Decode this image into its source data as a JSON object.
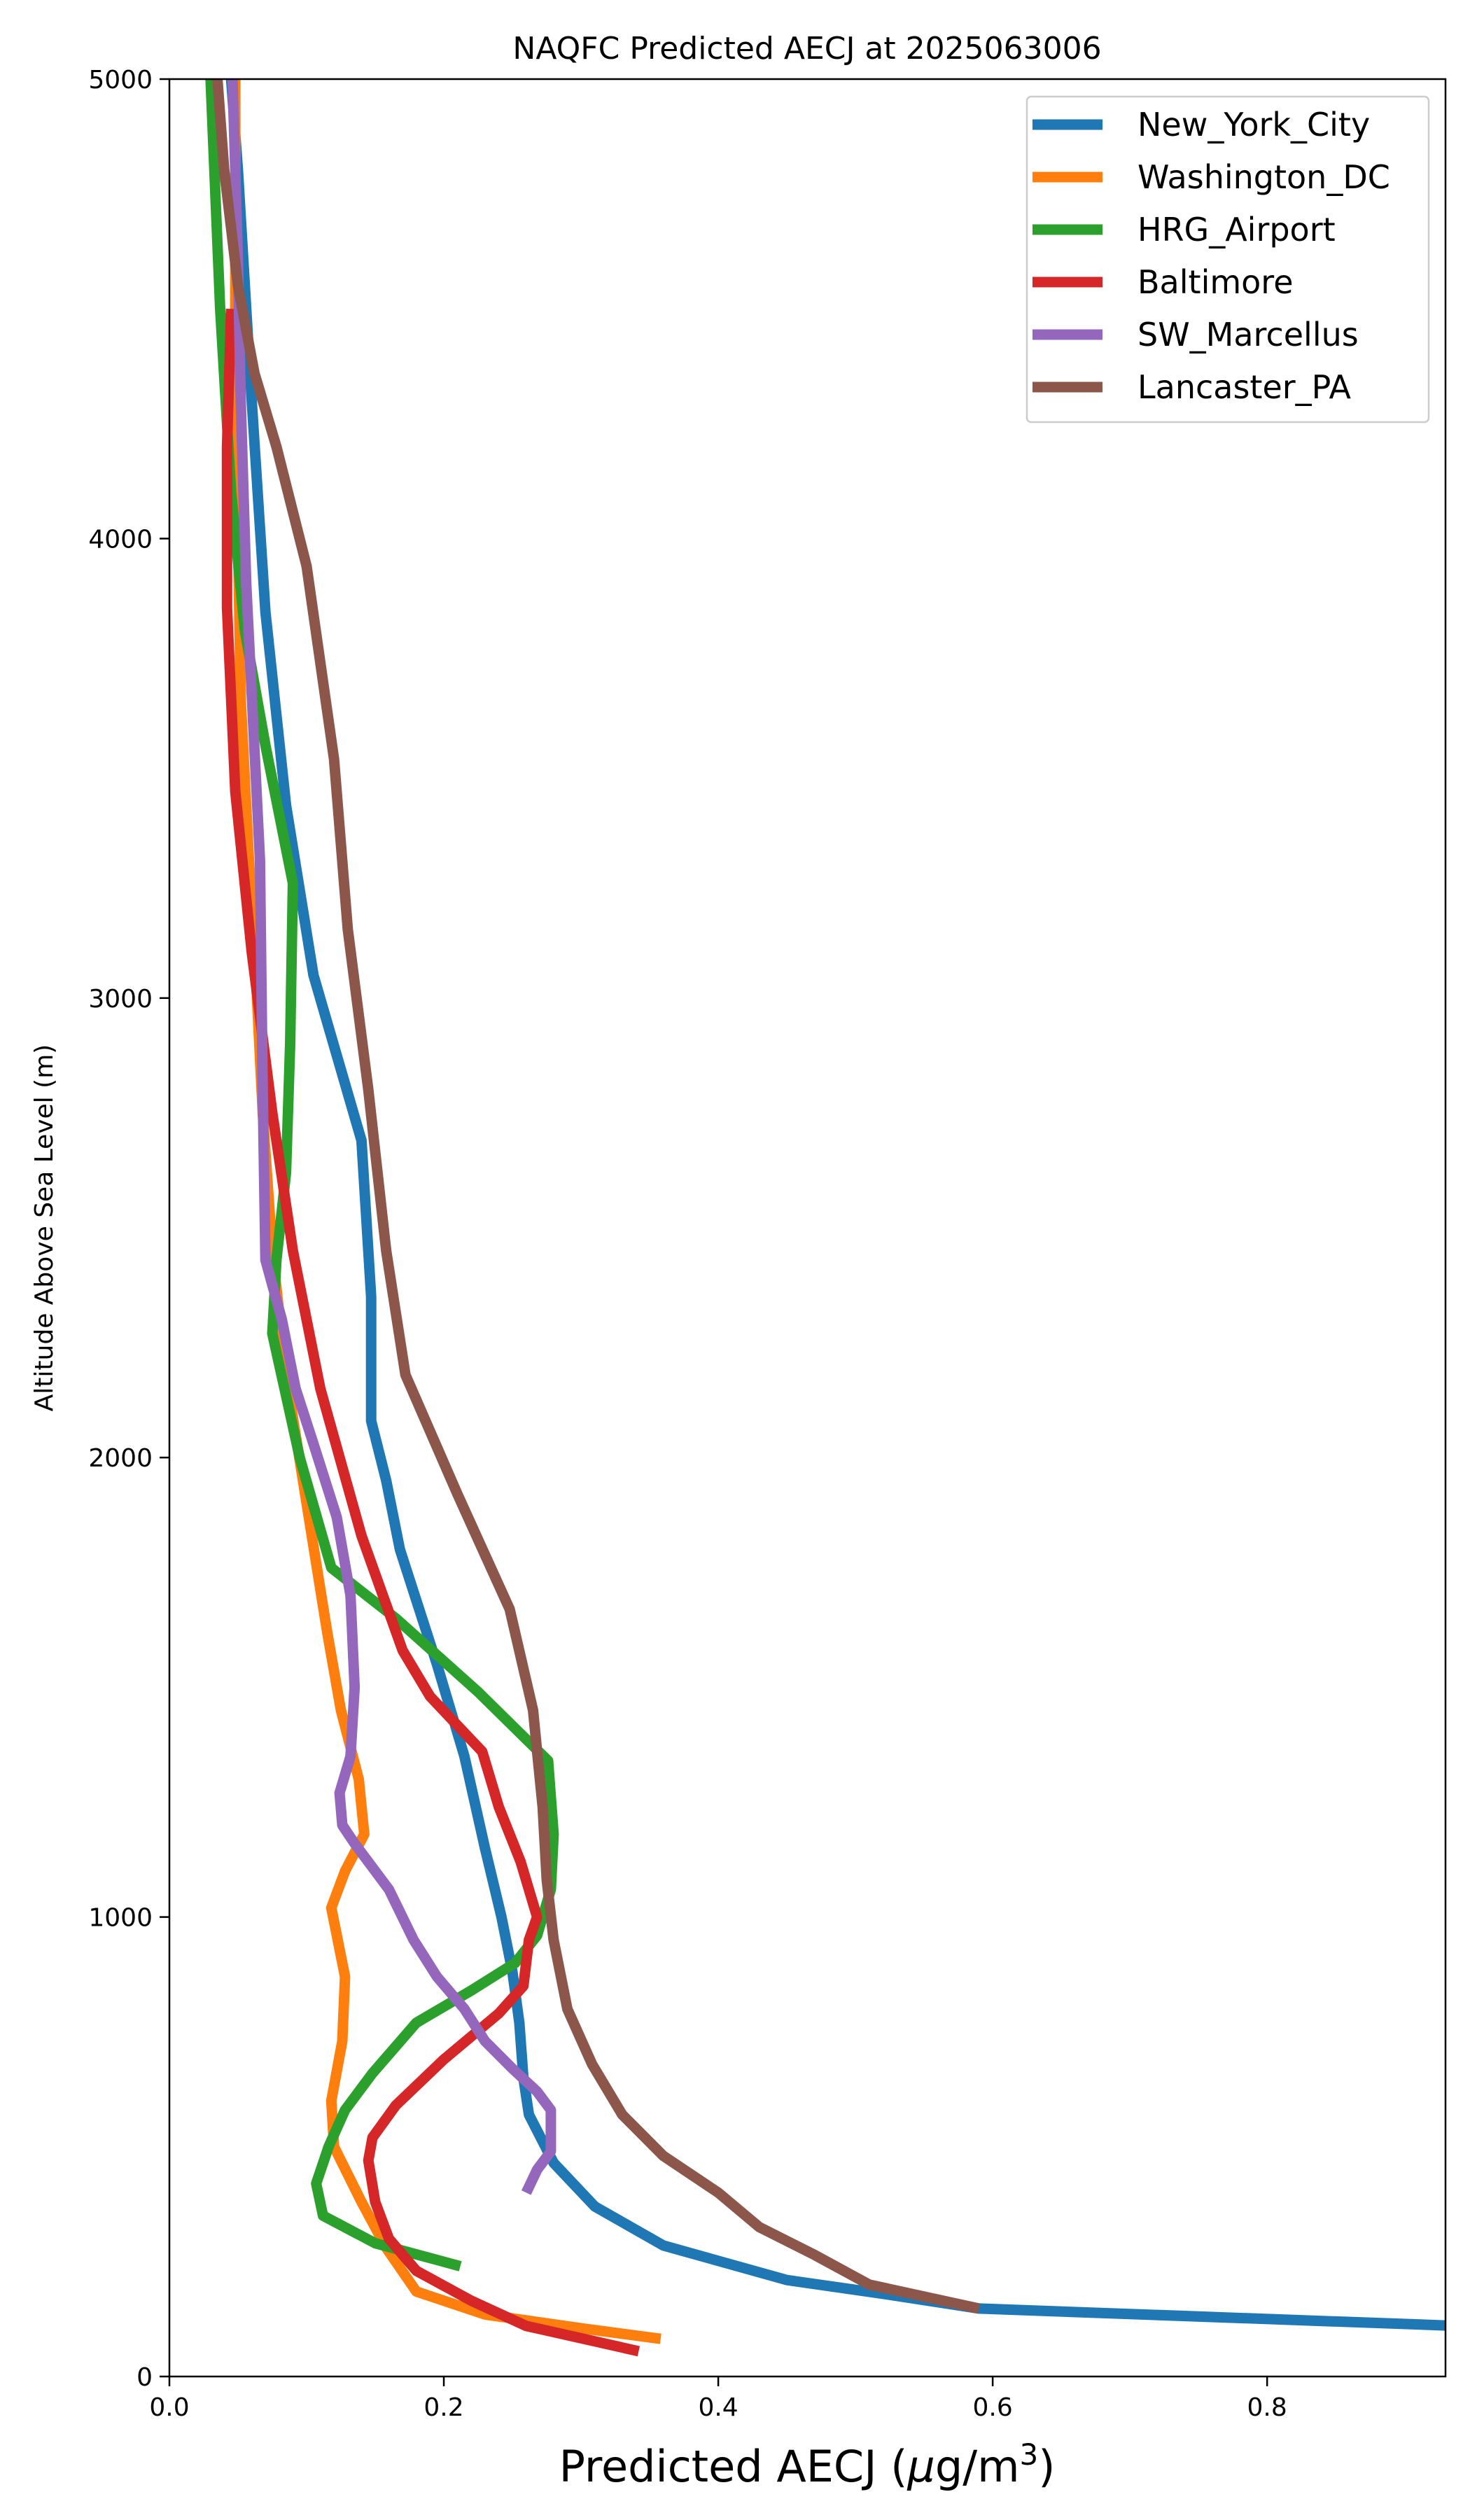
{
  "chart_data": {
    "type": "line",
    "title": "NAQFC Predicted AECJ at 2025063006",
    "xlabel": "Predicted AECJ (μg/m³)",
    "xlabel_main": "Predicted AECJ (",
    "xlabel_mu": "μ",
    "xlabel_unit": "g/m",
    "xlabel_exp": "3",
    "xlabel_close": ")",
    "ylabel": "Altitude Above Sea Level (m)",
    "xlim": [
      0,
      0.93
    ],
    "ylim": [
      0,
      5000
    ],
    "x_ticks": [
      0.0,
      0.2,
      0.4,
      0.6,
      0.8
    ],
    "x_tick_labels": [
      "0.0",
      "0.2",
      "0.4",
      "0.6",
      "0.8"
    ],
    "y_ticks": [
      0,
      1000,
      2000,
      3000,
      4000,
      5000
    ],
    "y_tick_labels": [
      "0",
      "1000",
      "2000",
      "3000",
      "4000",
      "5000"
    ],
    "grid": false,
    "legend_position": "top-right",
    "series": [
      {
        "name": "New_York_City",
        "color": "#1f77b4",
        "points": [
          [
            0.94,
            110
          ],
          [
            0.59,
            148
          ],
          [
            0.52,
            180
          ],
          [
            0.45,
            210
          ],
          [
            0.36,
            285
          ],
          [
            0.31,
            370
          ],
          [
            0.28,
            465
          ],
          [
            0.262,
            570
          ],
          [
            0.258,
            650
          ],
          [
            0.255,
            770
          ],
          [
            0.25,
            880
          ],
          [
            0.242,
            1000
          ],
          [
            0.23,
            1150
          ],
          [
            0.215,
            1350
          ],
          [
            0.195,
            1550
          ],
          [
            0.168,
            1800
          ],
          [
            0.158,
            1950
          ],
          [
            0.147,
            2080
          ],
          [
            0.147,
            2350
          ],
          [
            0.14,
            2690
          ],
          [
            0.105,
            3050
          ],
          [
            0.085,
            3420
          ],
          [
            0.07,
            3840
          ],
          [
            0.06,
            4300
          ],
          [
            0.05,
            4800
          ],
          [
            0.045,
            5000
          ]
        ]
      },
      {
        "name": "Washington_DC",
        "color": "#ff7f0e",
        "points": [
          [
            0.358,
            82
          ],
          [
            0.3,
            105
          ],
          [
            0.23,
            135
          ],
          [
            0.18,
            185
          ],
          [
            0.158,
            280
          ],
          [
            0.14,
            380
          ],
          [
            0.12,
            500
          ],
          [
            0.118,
            600
          ],
          [
            0.126,
            730
          ],
          [
            0.128,
            870
          ],
          [
            0.118,
            1020
          ],
          [
            0.128,
            1100
          ],
          [
            0.142,
            1180
          ],
          [
            0.138,
            1300
          ],
          [
            0.125,
            1450
          ],
          [
            0.115,
            1620
          ],
          [
            0.1,
            1900
          ],
          [
            0.085,
            2180
          ],
          [
            0.075,
            2450
          ],
          [
            0.068,
            2750
          ],
          [
            0.063,
            3050
          ],
          [
            0.058,
            3300
          ],
          [
            0.052,
            3650
          ],
          [
            0.05,
            4000
          ],
          [
            0.048,
            4500
          ],
          [
            0.048,
            5000
          ]
        ]
      },
      {
        "name": "HRG_Airport",
        "color": "#2ca02c",
        "points": [
          [
            0.212,
            240
          ],
          [
            0.15,
            290
          ],
          [
            0.112,
            350
          ],
          [
            0.107,
            420
          ],
          [
            0.116,
            500
          ],
          [
            0.128,
            580
          ],
          [
            0.148,
            660
          ],
          [
            0.18,
            770
          ],
          [
            0.22,
            840
          ],
          [
            0.252,
            900
          ],
          [
            0.268,
            960
          ],
          [
            0.278,
            1060
          ],
          [
            0.28,
            1180
          ],
          [
            0.276,
            1340
          ],
          [
            0.225,
            1490
          ],
          [
            0.165,
            1650
          ],
          [
            0.118,
            1760
          ],
          [
            0.095,
            2000
          ],
          [
            0.075,
            2270
          ],
          [
            0.078,
            2430
          ],
          [
            0.085,
            2620
          ],
          [
            0.088,
            2900
          ],
          [
            0.09,
            3250
          ],
          [
            0.07,
            3550
          ],
          [
            0.055,
            3800
          ],
          [
            0.045,
            4100
          ],
          [
            0.037,
            4500
          ],
          [
            0.03,
            5000
          ]
        ]
      },
      {
        "name": "Baltimore",
        "color": "#d62728",
        "points": [
          [
            0.342,
            55
          ],
          [
            0.26,
            110
          ],
          [
            0.22,
            165
          ],
          [
            0.18,
            230
          ],
          [
            0.16,
            300
          ],
          [
            0.15,
            380
          ],
          [
            0.145,
            470
          ],
          [
            0.148,
            520
          ],
          [
            0.165,
            590
          ],
          [
            0.2,
            690
          ],
          [
            0.24,
            790
          ],
          [
            0.258,
            850
          ],
          [
            0.262,
            950
          ],
          [
            0.268,
            1000
          ],
          [
            0.256,
            1120
          ],
          [
            0.24,
            1240
          ],
          [
            0.228,
            1360
          ],
          [
            0.19,
            1480
          ],
          [
            0.17,
            1580
          ],
          [
            0.14,
            1830
          ],
          [
            0.11,
            2150
          ],
          [
            0.09,
            2450
          ],
          [
            0.075,
            2750
          ],
          [
            0.06,
            3100
          ],
          [
            0.048,
            3450
          ],
          [
            0.042,
            3850
          ],
          [
            0.042,
            4200
          ],
          [
            0.045,
            4500
          ]
        ]
      },
      {
        "name": "SW_Marcellus",
        "color": "#9467bd",
        "points": [
          [
            0.26,
            400
          ],
          [
            0.268,
            450
          ],
          [
            0.278,
            490
          ],
          [
            0.278,
            580
          ],
          [
            0.268,
            620
          ],
          [
            0.25,
            670
          ],
          [
            0.23,
            730
          ],
          [
            0.215,
            800
          ],
          [
            0.195,
            870
          ],
          [
            0.178,
            950
          ],
          [
            0.16,
            1060
          ],
          [
            0.135,
            1160
          ],
          [
            0.126,
            1200
          ],
          [
            0.124,
            1270
          ],
          [
            0.132,
            1350
          ],
          [
            0.135,
            1500
          ],
          [
            0.132,
            1700
          ],
          [
            0.122,
            1870
          ],
          [
            0.105,
            2030
          ],
          [
            0.092,
            2150
          ],
          [
            0.082,
            2300
          ],
          [
            0.07,
            2430
          ],
          [
            0.068,
            2800
          ],
          [
            0.066,
            3300
          ],
          [
            0.056,
            3900
          ],
          [
            0.052,
            4300
          ],
          [
            0.05,
            4600
          ],
          [
            0.046,
            5000
          ]
        ]
      },
      {
        "name": "Lancaster_PA",
        "color": "#8c564b",
        "points": [
          [
            0.59,
            148
          ],
          [
            0.51,
            200
          ],
          [
            0.47,
            265
          ],
          [
            0.43,
            325
          ],
          [
            0.4,
            400
          ],
          [
            0.36,
            480
          ],
          [
            0.33,
            570
          ],
          [
            0.308,
            680
          ],
          [
            0.29,
            800
          ],
          [
            0.28,
            950
          ],
          [
            0.275,
            1080
          ],
          [
            0.272,
            1240
          ],
          [
            0.268,
            1360
          ],
          [
            0.265,
            1450
          ],
          [
            0.248,
            1670
          ],
          [
            0.21,
            1920
          ],
          [
            0.172,
            2180
          ],
          [
            0.158,
            2450
          ],
          [
            0.145,
            2800
          ],
          [
            0.13,
            3150
          ],
          [
            0.12,
            3520
          ],
          [
            0.1,
            3940
          ],
          [
            0.078,
            4200
          ],
          [
            0.062,
            4360
          ],
          [
            0.05,
            4550
          ],
          [
            0.04,
            4800
          ],
          [
            0.035,
            5000
          ]
        ]
      }
    ]
  }
}
